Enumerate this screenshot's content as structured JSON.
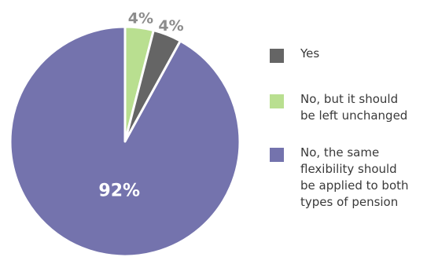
{
  "chart_data": {
    "type": "pie",
    "title": "",
    "slices": [
      {
        "label": "Yes",
        "value": 4,
        "display": "4%",
        "color": "#656565"
      },
      {
        "label": "No, but it should be left unchanged",
        "value": 4,
        "display": "4%",
        "color": "#b9df90"
      },
      {
        "label": "No, the same flexibility should be applied to both types of pension",
        "value": 92,
        "display": "92%",
        "color": "#7473ad"
      }
    ],
    "legend_placement": "right"
  },
  "legend": {
    "items": [
      {
        "label_lines": [
          "Yes"
        ]
      },
      {
        "label_lines": [
          "No, but it should",
          "be left unchanged"
        ]
      },
      {
        "label_lines": [
          "No, the same",
          "flexibility should",
          "be applied to both",
          "types of pension"
        ]
      }
    ]
  }
}
